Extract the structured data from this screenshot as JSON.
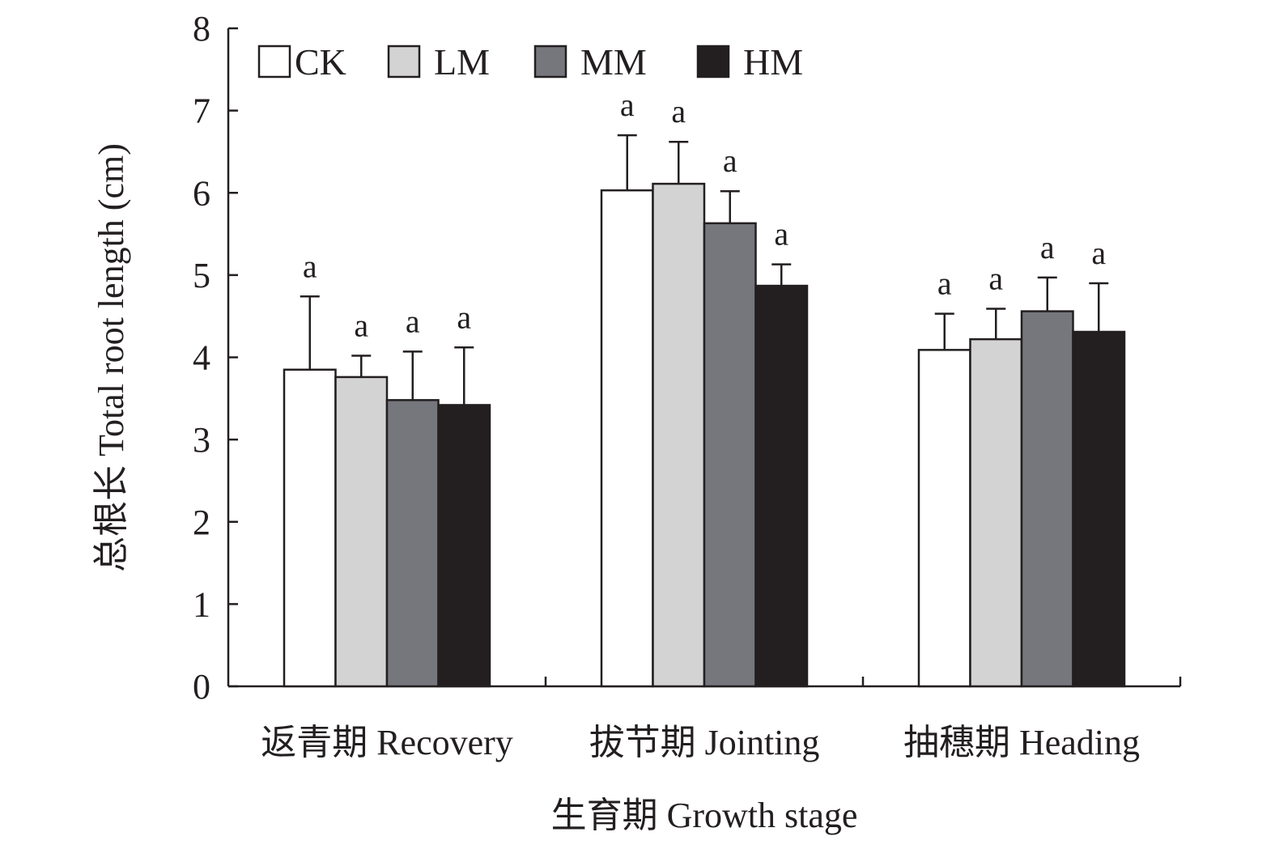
{
  "chart_data": {
    "type": "bar",
    "xlabel": "生育期 Growth stage",
    "ylabel": "总根长 Total root length (cm)",
    "ylim": [
      0,
      8
    ],
    "yticks": [
      "0",
      "1",
      "2",
      "3",
      "4",
      "5",
      "6",
      "7",
      "8"
    ],
    "categories": [
      "返青期 Recovery",
      "拔节期 Jointing",
      "抽穗期 Heading"
    ],
    "legend_position": "top-left",
    "series": [
      {
        "name": "CK",
        "color": "#ffffff",
        "values": [
          3.85,
          6.03,
          4.09
        ],
        "errors": [
          0.89,
          0.67,
          0.44
        ],
        "letters": [
          "a",
          "a",
          "a"
        ]
      },
      {
        "name": "LM",
        "color": "#d3d3d3",
        "values": [
          3.76,
          6.11,
          4.22
        ],
        "errors": [
          0.26,
          0.51,
          0.37
        ],
        "letters": [
          "a",
          "a",
          "a"
        ]
      },
      {
        "name": "MM",
        "color": "#76777d",
        "values": [
          3.48,
          5.63,
          4.56
        ],
        "errors": [
          0.59,
          0.39,
          0.41
        ],
        "letters": [
          "a",
          "a",
          "a"
        ]
      },
      {
        "name": "HM",
        "color": "#231f20",
        "values": [
          3.42,
          4.87,
          4.31
        ],
        "errors": [
          0.7,
          0.26,
          0.59
        ],
        "letters": [
          "a",
          "a",
          "a"
        ]
      }
    ]
  }
}
